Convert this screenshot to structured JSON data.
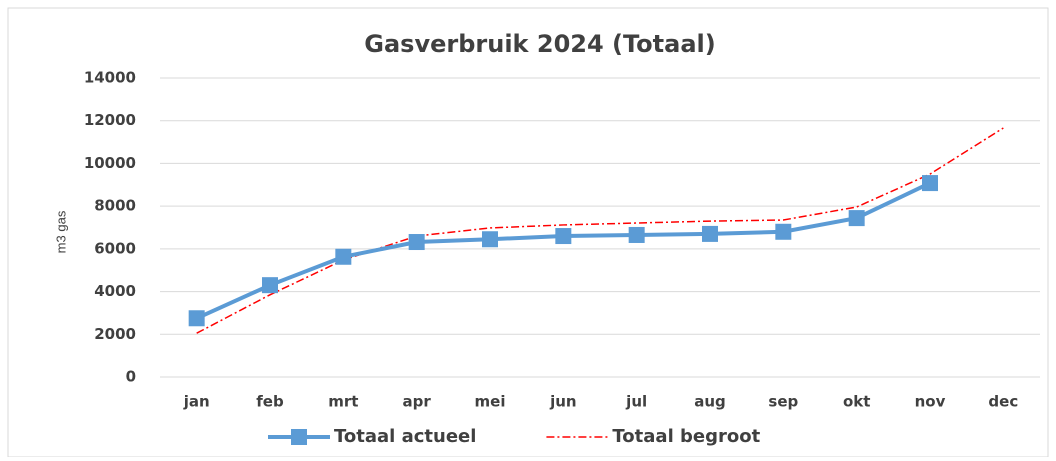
{
  "chart_data": {
    "type": "line",
    "title": "Gasverbruik 2024 (Totaal)",
    "y_label": "m3 gas",
    "categories": [
      "jan",
      "feb",
      "mrt",
      "apr",
      "mei",
      "jun",
      "jul",
      "aug",
      "sep",
      "okt",
      "nov",
      "dec"
    ],
    "series": [
      {
        "name": "Totaal actueel",
        "color": "#5b9bd5",
        "line_style": "solid",
        "marker": "square",
        "values": [
          2750,
          4300,
          5630,
          6320,
          6450,
          6600,
          6650,
          6700,
          6800,
          7440,
          9080,
          null
        ]
      },
      {
        "name": "Totaal begroot",
        "color": "#ff0000",
        "line_style": "dashdot",
        "marker": null,
        "values": [
          2050,
          3850,
          5480,
          6600,
          6980,
          7120,
          7210,
          7300,
          7350,
          7960,
          9500,
          11660
        ]
      }
    ],
    "ylim": [
      0,
      14000
    ],
    "yticks": [
      0,
      2000,
      4000,
      6000,
      8000,
      10000,
      12000,
      14000
    ],
    "grid": true,
    "legend": "bottom"
  }
}
